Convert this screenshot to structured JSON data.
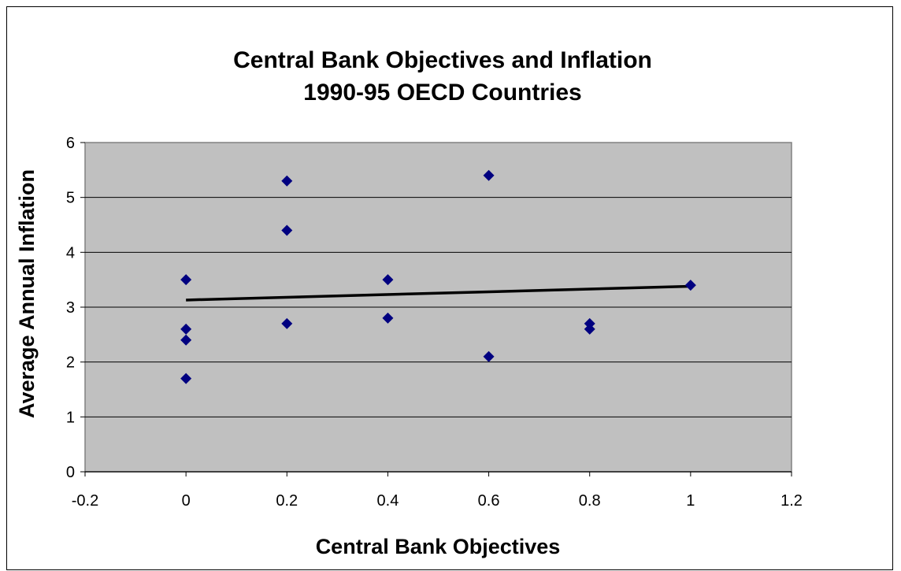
{
  "chart_data": {
    "type": "scatter",
    "title": "Central Bank Objectives and Inflation",
    "subtitle": "1990-95 OECD Countries",
    "xlabel": "Central Bank Objectives",
    "ylabel": "Average Annual Inflation",
    "xlim": [
      -0.2,
      1.2
    ],
    "ylim": [
      0,
      6
    ],
    "xticks": [
      "-0.2",
      "0",
      "0.2",
      "0.4",
      "0.6",
      "0.8",
      "1",
      "1.2"
    ],
    "yticks": [
      "0",
      "1",
      "2",
      "3",
      "4",
      "5",
      "6"
    ],
    "grid": true,
    "plot_background": "#c0c0c0",
    "marker_color": "#000080",
    "trendline_color": "#000000",
    "series": [
      {
        "marker": "diamond",
        "points": [
          {
            "x": 0,
            "y": 3.5
          },
          {
            "x": 0,
            "y": 2.6
          },
          {
            "x": 0,
            "y": 2.4
          },
          {
            "x": 0,
            "y": 1.7
          },
          {
            "x": 0.2,
            "y": 5.3
          },
          {
            "x": 0.2,
            "y": 4.4
          },
          {
            "x": 0.2,
            "y": 2.7
          },
          {
            "x": 0.4,
            "y": 3.5
          },
          {
            "x": 0.4,
            "y": 2.8
          },
          {
            "x": 0.6,
            "y": 5.4
          },
          {
            "x": 0.6,
            "y": 2.1
          },
          {
            "x": 0.8,
            "y": 2.7
          },
          {
            "x": 0.8,
            "y": 2.6
          },
          {
            "x": 1,
            "y": 3.4
          }
        ]
      }
    ],
    "trendline": {
      "x": [
        0,
        1
      ],
      "y": [
        3.13,
        3.38
      ]
    }
  }
}
